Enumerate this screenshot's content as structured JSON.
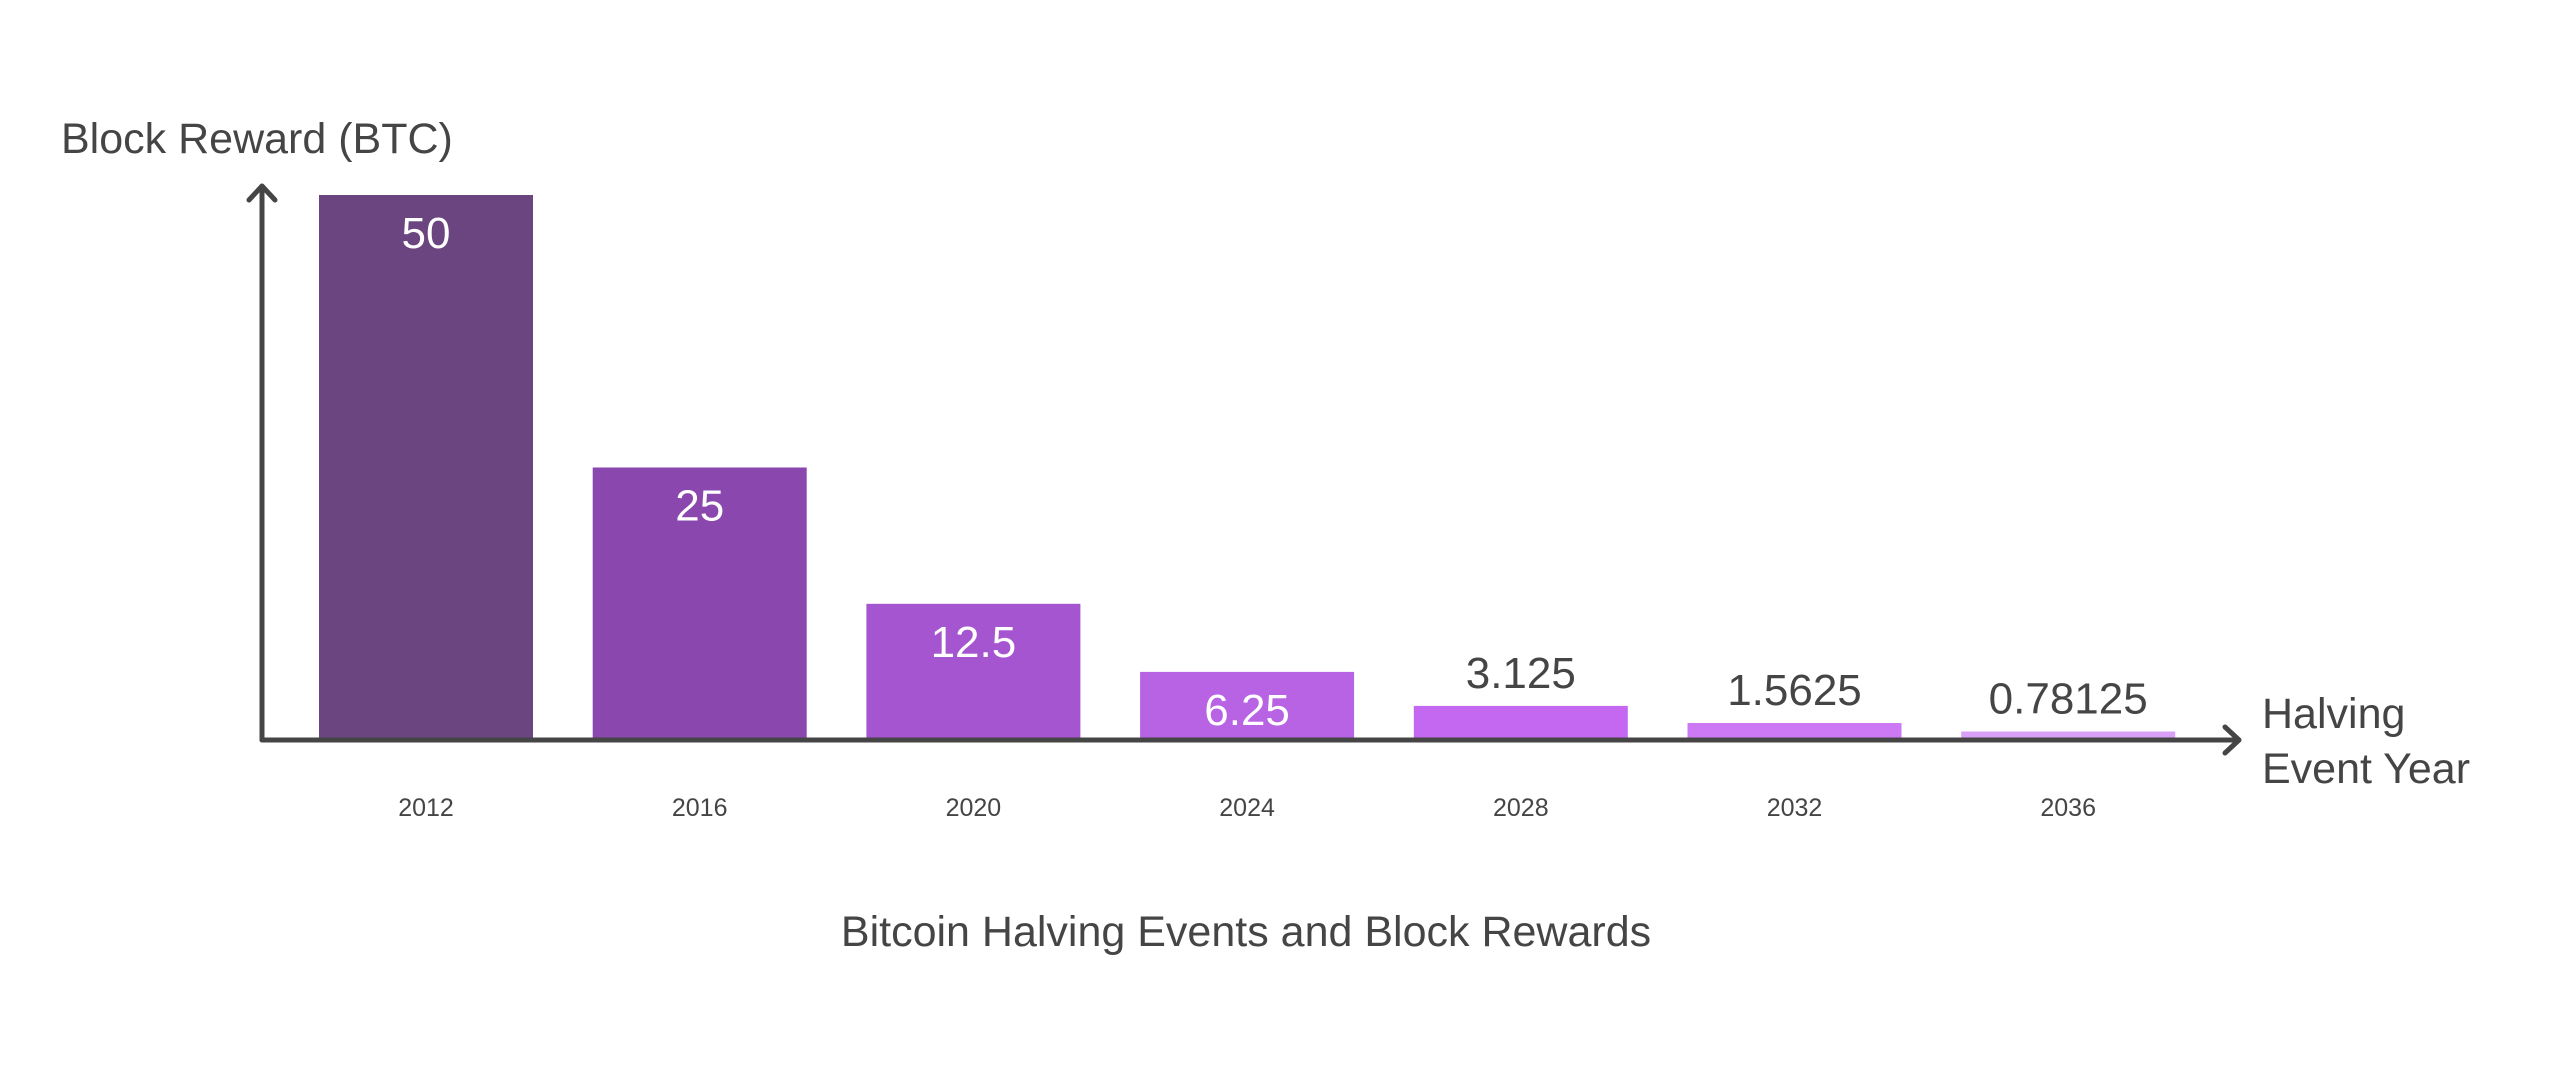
{
  "chart_data": {
    "type": "bar",
    "title": "Bitcoin Halving Events and Block Rewards",
    "xlabel_lines": [
      "Halving",
      "Event Year"
    ],
    "ylabel": "Block Reward (BTC)",
    "categories": [
      "2012",
      "2016",
      "2020",
      "2024",
      "2028",
      "2032",
      "2036"
    ],
    "values": [
      50,
      25,
      12.5,
      6.25,
      3.125,
      1.5625,
      0.78125
    ],
    "value_labels": [
      "50",
      "25",
      "12.5",
      "6.25",
      "3.125",
      "1.5625",
      "0.78125"
    ],
    "bar_colors": [
      "#6b457f",
      "#8a47ad",
      "#a655d0",
      "#b862e4",
      "#c467f1",
      "#cd79f6",
      "#d8a0f7"
    ],
    "ylim": [
      0,
      50
    ],
    "grid": false,
    "legend": "none"
  },
  "colors": {
    "axis": "#454545",
    "text_dark": "#454545",
    "text_light": "#ffffff"
  }
}
